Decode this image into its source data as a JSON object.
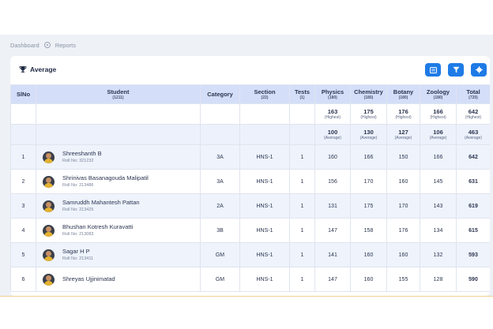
{
  "breadcrumb": {
    "home": "Dashboard",
    "current": "Reports"
  },
  "card": {
    "title": "Average"
  },
  "toolbar": {
    "icons": [
      "list-icon",
      "filter-icon",
      "settings-icon"
    ]
  },
  "colors": {
    "accent": "#1e7be6",
    "header_bg": "#d4def8",
    "row_alt": "#eef3fc"
  },
  "table": {
    "columns": [
      {
        "label": "SlNo",
        "sub": ""
      },
      {
        "label": "Student",
        "sub": "(1211)"
      },
      {
        "label": "Category",
        "sub": ""
      },
      {
        "label": "Section",
        "sub": "(22)"
      },
      {
        "label": "Tests",
        "sub": "(1)"
      },
      {
        "label": "Physics",
        "sub": "(180)"
      },
      {
        "label": "Chemistry",
        "sub": "(180)"
      },
      {
        "label": "Botany",
        "sub": "(180)"
      },
      {
        "label": "Zoology",
        "sub": "(180)"
      },
      {
        "label": "Total",
        "sub": "(720)"
      }
    ],
    "highest": {
      "label": "(Highest)",
      "values": [
        "163",
        "175",
        "176",
        "166",
        "642"
      ]
    },
    "average": {
      "label": "(Average)",
      "values": [
        "100",
        "130",
        "127",
        "106",
        "463"
      ]
    },
    "rows": [
      {
        "sl": "1",
        "name": "Shreeshanth B",
        "roll": "Roll No: 321232",
        "category": "3A",
        "section": "HNS-1",
        "tests": "1",
        "physics": "160",
        "chemistry": "166",
        "botany": "150",
        "zoology": "166",
        "total": "642"
      },
      {
        "sl": "2",
        "name": "Shrinivas Basanagouda Malipatil",
        "roll": "Roll No: 213486",
        "category": "3A",
        "section": "HNS-1",
        "tests": "1",
        "physics": "156",
        "chemistry": "170",
        "botany": "160",
        "zoology": "145",
        "total": "631"
      },
      {
        "sl": "3",
        "name": "Samruddh Mahantesh Pattan",
        "roll": "Roll No: 213425",
        "category": "2A",
        "section": "HNS-1",
        "tests": "1",
        "physics": "131",
        "chemistry": "175",
        "botany": "170",
        "zoology": "143",
        "total": "619"
      },
      {
        "sl": "4",
        "name": "Bhushan Kotresh Kuravatti",
        "roll": "Roll No: 213083",
        "category": "3B",
        "section": "HNS-1",
        "tests": "1",
        "physics": "147",
        "chemistry": "158",
        "botany": "176",
        "zoology": "134",
        "total": "615"
      },
      {
        "sl": "5",
        "name": "Sagar H P",
        "roll": "Roll No: 213411",
        "category": "GM",
        "section": "HNS-1",
        "tests": "1",
        "physics": "141",
        "chemistry": "160",
        "botany": "160",
        "zoology": "132",
        "total": "593"
      },
      {
        "sl": "6",
        "name": "Shreyas Ujjinimatad",
        "roll": "",
        "category": "GM",
        "section": "HNS-1",
        "tests": "1",
        "physics": "147",
        "chemistry": "160",
        "botany": "155",
        "zoology": "128",
        "total": "590"
      }
    ]
  }
}
